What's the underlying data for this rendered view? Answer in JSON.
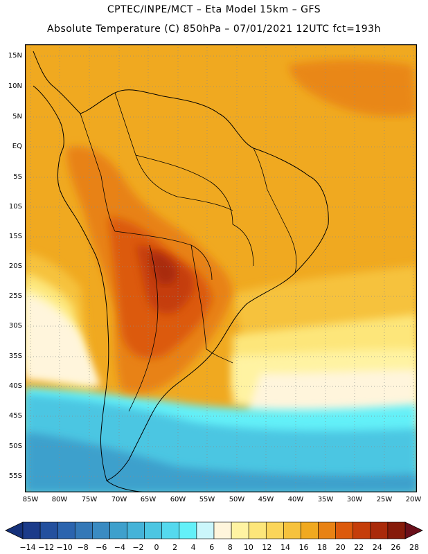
{
  "header": {
    "line1": "CPTEC/INPE/MCT –  Eta Model 15km – GFS",
    "line2": "Absolute Temperature (C) 850hPa – 07/01/2021 12UTC fct=193h"
  },
  "axes": {
    "lat_labels": [
      "15N",
      "10N",
      "5N",
      "EQ",
      "5S",
      "10S",
      "15S",
      "20S",
      "25S",
      "30S",
      "35S",
      "40S",
      "45S",
      "50S",
      "55S"
    ],
    "lon_labels": [
      "85W",
      "80W",
      "75W",
      "70W",
      "65W",
      "60W",
      "55W",
      "50W",
      "45W",
      "40W",
      "35W",
      "30W",
      "25W",
      "20W"
    ]
  },
  "colorbar": {
    "labels": [
      "-14",
      "-12",
      "-10",
      "-8",
      "-6",
      "-4",
      "-2",
      "0",
      "2",
      "4",
      "6",
      "8",
      "10",
      "12",
      "14",
      "16",
      "18",
      "20",
      "22",
      "24",
      "26",
      "28"
    ],
    "colors": [
      "#1b3b8a",
      "#23509e",
      "#2b64ae",
      "#3478b7",
      "#3a8bc2",
      "#3ea0cc",
      "#45b3d8",
      "#4cc6e2",
      "#55d9ee",
      "#63f0f8",
      "#cbf6fb",
      "#fff5dc",
      "#fff3a2",
      "#fde67a",
      "#fbd55a",
      "#f6c23d",
      "#f0a920",
      "#e88214",
      "#dc5a0c",
      "#c53e0a",
      "#a92a0a",
      "#861b0a"
    ],
    "left_arrow_color": "#15317a",
    "right_arrow_color": "#6a0f1a"
  },
  "palette": {
    "frame": "#000000",
    "grid": "#8a8a8a",
    "land_line": "#000000"
  }
}
